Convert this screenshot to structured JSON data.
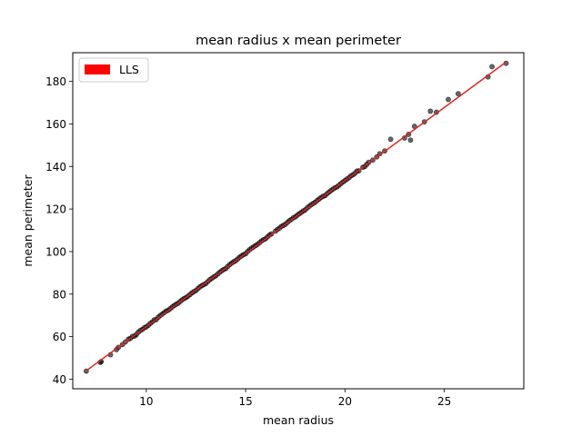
{
  "chart_data": {
    "type": "scatter",
    "title": "mean radius x mean perimeter",
    "xlabel": "mean radius",
    "ylabel": "mean perimeter",
    "xlim": [
      6.3,
      29.0
    ],
    "ylim": [
      35.5,
      193.5
    ],
    "xticks": [
      10,
      15,
      20,
      25
    ],
    "yticks": [
      40,
      60,
      80,
      100,
      120,
      140,
      160,
      180
    ],
    "grid": false,
    "legend": {
      "position": "top-left",
      "entries": [
        {
          "label": "LLS",
          "color": "#ff0000"
        }
      ]
    },
    "colors": {
      "points": "#000000",
      "fit_line": "#d62728",
      "legend_patch": "#ff0000"
    },
    "fit_line": {
      "label": "LLS",
      "slope": 6.87,
      "intercept": -4.0,
      "x_range": [
        6.98,
        28.11
      ]
    },
    "series": [
      {
        "x": [
          6.98,
          7.69,
          7.73,
          8.2,
          8.5,
          8.6,
          8.8,
          8.95,
          9.1,
          9.2,
          9.3,
          9.42,
          9.5,
          9.6,
          9.7,
          9.8,
          9.9,
          10.0,
          10.1,
          10.2,
          10.3,
          10.4,
          10.5,
          10.6,
          10.7,
          10.8,
          10.9,
          11.0,
          11.1,
          11.2,
          11.3,
          11.4,
          11.5,
          11.6,
          11.7,
          11.8,
          11.9,
          12.0,
          12.1,
          12.2,
          12.3,
          12.4,
          12.5,
          12.6,
          12.7,
          12.8,
          12.9,
          13.0,
          13.1,
          13.2,
          13.3,
          13.4,
          13.5,
          13.6,
          13.7,
          13.8,
          13.9,
          14.0,
          14.1,
          14.2,
          14.3,
          14.4,
          14.5,
          14.6,
          14.7,
          14.8,
          14.9,
          15.0,
          15.1,
          15.2,
          15.3,
          15.4,
          15.5,
          15.6,
          15.7,
          15.8,
          15.9,
          16.0,
          16.1,
          16.2,
          16.3,
          16.5,
          16.6,
          16.7,
          16.8,
          16.9,
          17.0,
          17.1,
          17.2,
          17.3,
          17.4,
          17.5,
          17.6,
          17.7,
          17.8,
          17.9,
          18.0,
          18.1,
          18.2,
          18.3,
          18.4,
          18.5,
          18.6,
          18.7,
          18.8,
          18.9,
          19.0,
          19.1,
          19.2,
          19.3,
          19.4,
          19.5,
          19.6,
          19.7,
          19.8,
          19.9,
          20.0,
          20.1,
          20.2,
          20.3,
          20.4,
          20.5,
          20.6,
          20.7,
          20.9,
          21.0,
          21.1,
          21.2,
          21.4,
          21.6,
          21.75,
          22.0,
          22.3,
          23.0,
          23.2,
          23.3,
          23.5,
          24.0,
          24.3,
          24.6,
          25.2,
          25.7,
          27.2,
          27.4,
          28.11
        ],
        "y": [
          43.8,
          47.9,
          48.3,
          51.5,
          53.9,
          55.0,
          56.3,
          57.5,
          58.8,
          59.2,
          60.1,
          60.3,
          61.0,
          62.1,
          62.9,
          63.4,
          64.2,
          64.6,
          65.3,
          66.2,
          66.9,
          67.9,
          68.0,
          69.1,
          69.9,
          70.6,
          71.3,
          72.0,
          72.4,
          73.1,
          73.9,
          74.6,
          75.2,
          75.7,
          76.5,
          77.3,
          77.9,
          78.4,
          79.0,
          79.8,
          80.6,
          81.2,
          81.7,
          82.6,
          83.4,
          84.0,
          84.5,
          85.0,
          85.9,
          86.8,
          87.4,
          88.1,
          88.6,
          89.5,
          90.3,
          91.0,
          91.6,
          92.0,
          93.0,
          93.9,
          94.6,
          95.2,
          95.7,
          96.5,
          97.4,
          98.0,
          98.6,
          99.0,
          100.0,
          100.9,
          101.6,
          102.2,
          102.8,
          103.4,
          104.2,
          105.0,
          105.6,
          106.0,
          106.9,
          107.8,
          108.3,
          109.6,
          110.4,
          111.0,
          111.8,
          112.3,
          112.8,
          113.7,
          114.5,
          115.1,
          115.9,
          116.3,
          117.1,
          117.8,
          118.4,
          119.1,
          119.6,
          120.5,
          121.3,
          122.0,
          122.6,
          123.2,
          124.0,
          124.7,
          125.4,
          126.0,
          126.3,
          127.2,
          128.0,
          128.7,
          129.4,
          130.0,
          130.4,
          131.2,
          132.0,
          132.7,
          133.4,
          134.1,
          134.7,
          135.6,
          136.1,
          136.8,
          137.8,
          138.0,
          139.6,
          140.0,
          141.0,
          142.0,
          143.0,
          144.5,
          146.0,
          147.3,
          152.8,
          153.4,
          155.1,
          152.4,
          158.9,
          161.0,
          166.0,
          165.5,
          171.5,
          174.2,
          182.1,
          186.9,
          188.5
        ]
      }
    ]
  }
}
